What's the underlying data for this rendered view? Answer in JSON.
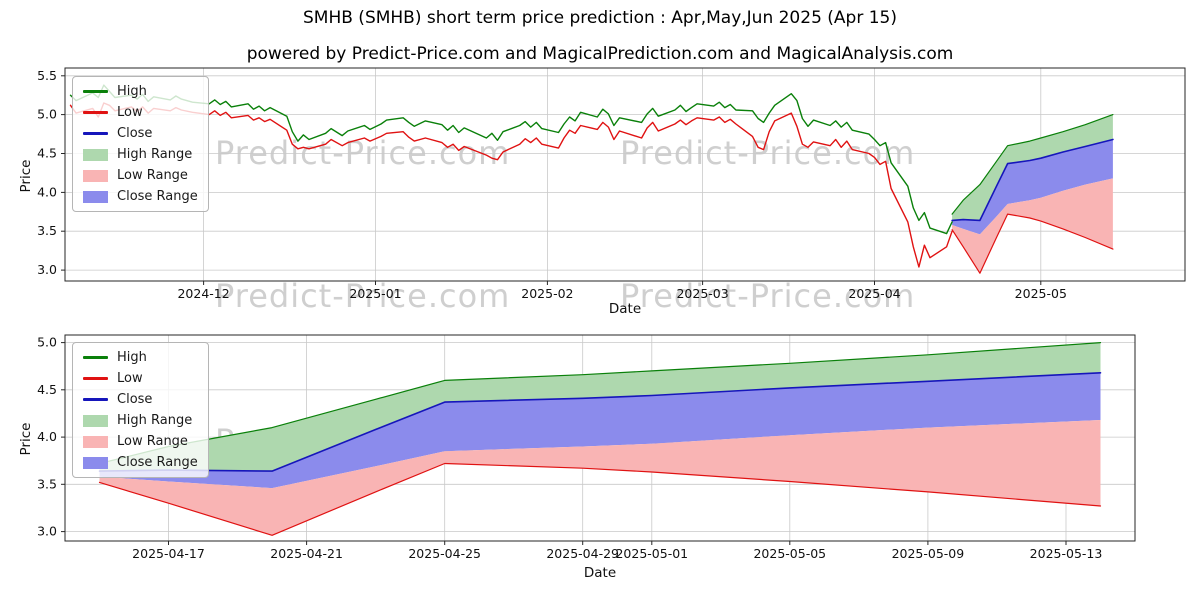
{
  "header": {
    "title": "SMHB (SMHB) short term price prediction : Apr,May,Jun 2025 (Apr 15)",
    "subtitle": "powered by Predict-Price.com and MagicalPrediction.com and MagicalAnalysis.com"
  },
  "watermark": {
    "text": "Predict-Price.com"
  },
  "colors": {
    "high": "#0a800a",
    "low": "#e01212",
    "close": "#1616bb",
    "high_range": "#aed8ae",
    "low_range": "#f9b4b4",
    "close_range": "#8b8bec",
    "grid": "#c9c9c9",
    "frame": "#262626",
    "text": "#111111",
    "watermark": "#cfcfcf"
  },
  "legend": {
    "items": [
      {
        "label": "High",
        "swatch": "line",
        "color": "#0a800a"
      },
      {
        "label": "Low",
        "swatch": "line",
        "color": "#e01212"
      },
      {
        "label": "Close",
        "swatch": "line",
        "color": "#1616bb"
      },
      {
        "label": "High Range",
        "swatch": "patch",
        "color": "#aed8ae"
      },
      {
        "label": "Low Range",
        "swatch": "patch",
        "color": "#f9b4b4"
      },
      {
        "label": "Close Range",
        "swatch": "patch",
        "color": "#8b8bec"
      }
    ]
  },
  "chart_data": [
    {
      "type": "line",
      "title": "SMHB (SMHB) short term price prediction : Apr,May,Jun 2025 (Apr 15)",
      "subtitle": "powered by Predict-Price.com and MagicalPrediction.com and MagicalAnalysis.com",
      "xlabel": "Date",
      "ylabel": "Price",
      "x_range": [
        "2024-11-06",
        "2025-05-27"
      ],
      "ylim": [
        2.86,
        5.6
      ],
      "yticks": [
        3.0,
        3.5,
        4.0,
        4.5,
        5.0,
        5.5
      ],
      "xticks": [
        {
          "value": "2024-12-01",
          "label": "2024-12"
        },
        {
          "value": "2025-01-01",
          "label": "2025-01"
        },
        {
          "value": "2025-02-01",
          "label": "2025-02"
        },
        {
          "value": "2025-03-01",
          "label": "2025-03"
        },
        {
          "value": "2025-04-01",
          "label": "2025-04"
        },
        {
          "value": "2025-05-01",
          "label": "2025-05"
        }
      ],
      "grid": true,
      "legend_position": "upper left",
      "legend": [
        "High",
        "Low",
        "Close",
        "High Range",
        "Low Range",
        "Close Range"
      ],
      "historical": {
        "dates": [
          "2024-11-07",
          "2024-11-08",
          "2024-11-11",
          "2024-11-12",
          "2024-11-13",
          "2024-11-14",
          "2024-11-15",
          "2024-11-18",
          "2024-11-19",
          "2024-11-20",
          "2024-11-21",
          "2024-11-22",
          "2024-11-25",
          "2024-11-26",
          "2024-11-27",
          "2024-11-29",
          "2024-12-02",
          "2024-12-03",
          "2024-12-04",
          "2024-12-05",
          "2024-12-06",
          "2024-12-09",
          "2024-12-10",
          "2024-12-11",
          "2024-12-12",
          "2024-12-13",
          "2024-12-16",
          "2024-12-17",
          "2024-12-18",
          "2024-12-19",
          "2024-12-20",
          "2024-12-23",
          "2024-12-24",
          "2024-12-26",
          "2024-12-27",
          "2024-12-30",
          "2024-12-31",
          "2025-01-02",
          "2025-01-03",
          "2025-01-06",
          "2025-01-07",
          "2025-01-08",
          "2025-01-10",
          "2025-01-13",
          "2025-01-14",
          "2025-01-15",
          "2025-01-16",
          "2025-01-17",
          "2025-01-21",
          "2025-01-22",
          "2025-01-23",
          "2025-01-24",
          "2025-01-27",
          "2025-01-28",
          "2025-01-29",
          "2025-01-30",
          "2025-01-31",
          "2025-02-03",
          "2025-02-04",
          "2025-02-05",
          "2025-02-06",
          "2025-02-07",
          "2025-02-10",
          "2025-02-11",
          "2025-02-12",
          "2025-02-13",
          "2025-02-14",
          "2025-02-18",
          "2025-02-19",
          "2025-02-20",
          "2025-02-21",
          "2025-02-24",
          "2025-02-25",
          "2025-02-26",
          "2025-02-27",
          "2025-02-28",
          "2025-03-03",
          "2025-03-04",
          "2025-03-05",
          "2025-03-06",
          "2025-03-07",
          "2025-03-10",
          "2025-03-11",
          "2025-03-12",
          "2025-03-13",
          "2025-03-14",
          "2025-03-17",
          "2025-03-18",
          "2025-03-19",
          "2025-03-20",
          "2025-03-21",
          "2025-03-24",
          "2025-03-25",
          "2025-03-26",
          "2025-03-27",
          "2025-03-28",
          "2025-03-31",
          "2025-04-01",
          "2025-04-02",
          "2025-04-03",
          "2025-04-04",
          "2025-04-07",
          "2025-04-08",
          "2025-04-09",
          "2025-04-10",
          "2025-04-11",
          "2025-04-14",
          "2025-04-15"
        ],
        "high": [
          5.25,
          5.18,
          5.28,
          5.22,
          5.38,
          5.3,
          5.22,
          5.25,
          5.2,
          5.26,
          5.17,
          5.23,
          5.19,
          5.24,
          5.2,
          5.16,
          5.14,
          5.19,
          5.13,
          5.17,
          5.1,
          5.14,
          5.07,
          5.11,
          5.05,
          5.09,
          4.98,
          4.78,
          4.66,
          4.74,
          4.68,
          4.76,
          4.82,
          4.73,
          4.79,
          4.86,
          4.81,
          4.88,
          4.93,
          4.96,
          4.9,
          4.85,
          4.92,
          4.87,
          4.8,
          4.86,
          4.77,
          4.83,
          4.7,
          4.76,
          4.67,
          4.78,
          4.86,
          4.91,
          4.84,
          4.9,
          4.82,
          4.77,
          4.88,
          4.97,
          4.92,
          5.03,
          4.97,
          5.07,
          5.01,
          4.86,
          4.96,
          4.9,
          5.01,
          5.08,
          4.98,
          5.06,
          5.12,
          5.04,
          5.09,
          5.14,
          5.11,
          5.16,
          5.09,
          5.13,
          5.06,
          5.05,
          4.95,
          4.9,
          5.02,
          5.12,
          5.27,
          5.18,
          4.95,
          4.85,
          4.93,
          4.86,
          4.92,
          4.84,
          4.9,
          4.8,
          4.75,
          4.68,
          4.6,
          4.64,
          4.38,
          4.08,
          3.8,
          3.64,
          3.74,
          3.54,
          3.47,
          3.62
        ],
        "low": [
          5.12,
          5.02,
          5.08,
          4.97,
          5.15,
          5.12,
          5.05,
          5.1,
          5.04,
          5.1,
          5.02,
          5.08,
          5.05,
          5.09,
          5.06,
          5.03,
          5.0,
          5.05,
          4.99,
          5.03,
          4.96,
          4.99,
          4.93,
          4.96,
          4.91,
          4.94,
          4.8,
          4.62,
          4.56,
          4.58,
          4.56,
          4.62,
          4.68,
          4.6,
          4.64,
          4.7,
          4.66,
          4.72,
          4.76,
          4.78,
          4.71,
          4.66,
          4.7,
          4.64,
          4.58,
          4.62,
          4.54,
          4.59,
          4.48,
          4.44,
          4.42,
          4.52,
          4.62,
          4.69,
          4.64,
          4.7,
          4.62,
          4.57,
          4.7,
          4.8,
          4.76,
          4.86,
          4.81,
          4.9,
          4.84,
          4.68,
          4.79,
          4.7,
          4.83,
          4.9,
          4.79,
          4.88,
          4.93,
          4.87,
          4.92,
          4.96,
          4.93,
          4.97,
          4.9,
          4.94,
          4.88,
          4.72,
          4.58,
          4.55,
          4.78,
          4.92,
          5.02,
          4.85,
          4.62,
          4.58,
          4.65,
          4.6,
          4.68,
          4.58,
          4.66,
          4.55,
          4.5,
          4.45,
          4.36,
          4.4,
          4.05,
          3.62,
          3.3,
          3.04,
          3.32,
          3.16,
          3.3,
          3.5
        ]
      },
      "forecast": {
        "dates": [
          "2025-04-15",
          "2025-04-17",
          "2025-04-20",
          "2025-04-23",
          "2025-04-25",
          "2025-04-29",
          "2025-05-01",
          "2025-05-05",
          "2025-05-09",
          "2025-05-14"
        ],
        "high_upper": [
          3.72,
          3.9,
          4.1,
          4.4,
          4.6,
          4.66,
          4.7,
          4.78,
          4.87,
          5.0
        ],
        "close": [
          3.64,
          3.65,
          3.64,
          4.08,
          4.37,
          4.41,
          4.44,
          4.52,
          4.59,
          4.68
        ],
        "close_lower": [
          3.58,
          3.53,
          3.46,
          3.69,
          3.85,
          3.9,
          3.93,
          4.02,
          4.1,
          4.18
        ],
        "low_lower": [
          3.52,
          3.3,
          2.96,
          3.42,
          3.72,
          3.67,
          3.63,
          3.53,
          3.42,
          3.27
        ]
      }
    },
    {
      "type": "line",
      "title": "",
      "xlabel": "Date",
      "ylabel": "Price",
      "x_range": [
        "2025-04-14",
        "2025-05-15"
      ],
      "ylim": [
        2.9,
        5.08
      ],
      "yticks": [
        3.0,
        3.5,
        4.0,
        4.5,
        5.0
      ],
      "xticks": [
        {
          "value": "2025-04-17",
          "label": "2025-04-17"
        },
        {
          "value": "2025-04-21",
          "label": "2025-04-21"
        },
        {
          "value": "2025-04-25",
          "label": "2025-04-25"
        },
        {
          "value": "2025-04-29",
          "label": "2025-04-29"
        },
        {
          "value": "2025-05-01",
          "label": "2025-05-01"
        },
        {
          "value": "2025-05-05",
          "label": "2025-05-05"
        },
        {
          "value": "2025-05-09",
          "label": "2025-05-09"
        },
        {
          "value": "2025-05-13",
          "label": "2025-05-13"
        }
      ],
      "grid": true,
      "legend_position": "upper left",
      "legend": [
        "High",
        "Low",
        "Close",
        "High Range",
        "Low Range",
        "Close Range"
      ],
      "forecast": {
        "dates": [
          "2025-04-15",
          "2025-04-17",
          "2025-04-20",
          "2025-04-23",
          "2025-04-25",
          "2025-04-29",
          "2025-05-01",
          "2025-05-05",
          "2025-05-09",
          "2025-05-14"
        ],
        "high_upper": [
          3.72,
          3.9,
          4.1,
          4.4,
          4.6,
          4.66,
          4.7,
          4.78,
          4.87,
          5.0
        ],
        "close": [
          3.64,
          3.65,
          3.64,
          4.08,
          4.37,
          4.41,
          4.44,
          4.52,
          4.59,
          4.68
        ],
        "close_lower": [
          3.58,
          3.53,
          3.46,
          3.69,
          3.85,
          3.9,
          3.93,
          4.02,
          4.1,
          4.18
        ],
        "low_lower": [
          3.52,
          3.3,
          2.96,
          3.42,
          3.72,
          3.67,
          3.63,
          3.53,
          3.42,
          3.27
        ]
      }
    }
  ]
}
